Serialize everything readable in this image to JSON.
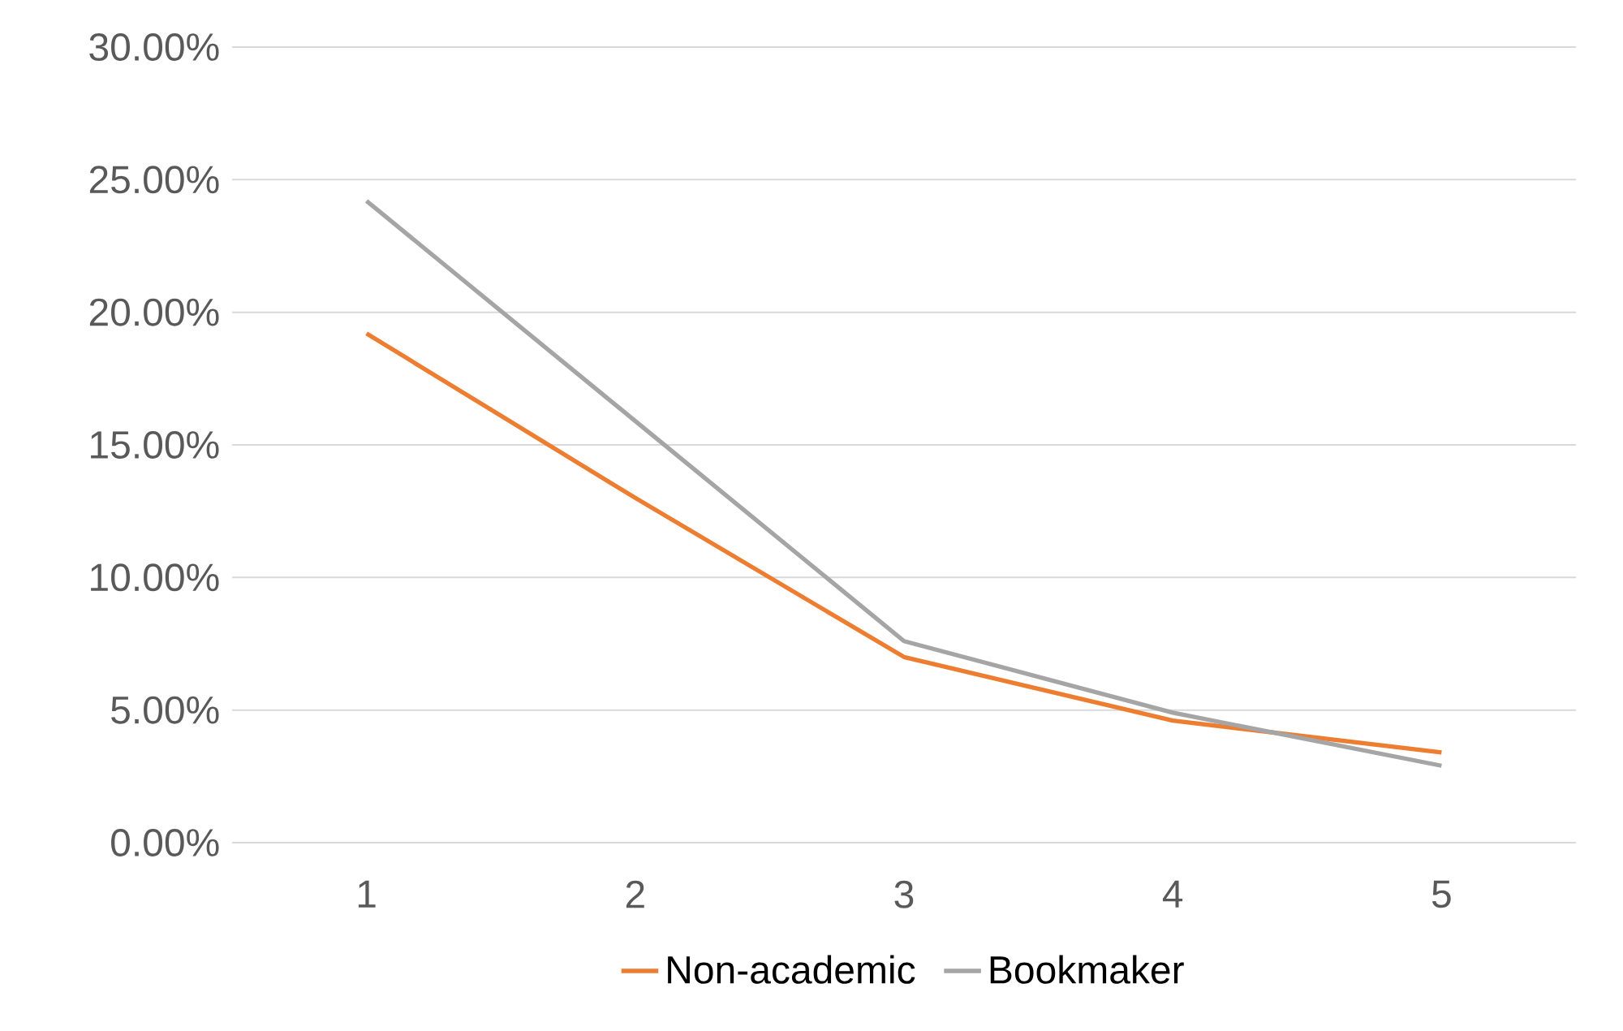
{
  "chart_data": {
    "type": "line",
    "categories": [
      "1",
      "2",
      "3",
      "4",
      "5"
    ],
    "series": [
      {
        "name": "Non-academic",
        "color": "#ed7d31",
        "values": [
          19.2,
          13.0,
          7.0,
          4.6,
          3.4
        ]
      },
      {
        "name": "Bookmaker",
        "color": "#a5a5a5",
        "values": [
          24.2,
          15.9,
          7.6,
          4.9,
          2.9
        ]
      }
    ],
    "ylim": [
      0,
      30
    ],
    "yticks": [
      {
        "value": 0,
        "label": "0.00%"
      },
      {
        "value": 5,
        "label": "5.00%"
      },
      {
        "value": 10,
        "label": "10.00%"
      },
      {
        "value": 15,
        "label": "15.00%"
      },
      {
        "value": 20,
        "label": "20.00%"
      },
      {
        "value": 25,
        "label": "25.00%"
      },
      {
        "value": 30,
        "label": "30.00%"
      }
    ],
    "grid": "y",
    "legend": "bottom",
    "marker": "none",
    "line_style": "solid"
  }
}
